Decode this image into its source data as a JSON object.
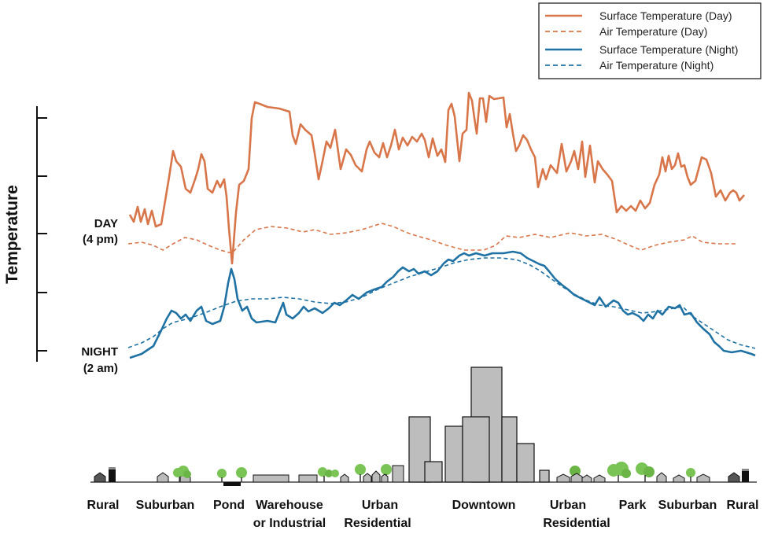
{
  "colors": {
    "day": "#D8764A",
    "night": "#1F72A3",
    "building": "#BDBDBD",
    "tree": "#79C454"
  },
  "axis": {
    "title": "Temperature",
    "day_label_1": "DAY",
    "day_label_2": "(4 pm)",
    "night_label_1": "NIGHT",
    "night_label_2": "(2 am)"
  },
  "legend": [
    {
      "label": "Surface Temperature (Day)",
      "series": "day",
      "style": "solid"
    },
    {
      "label": "Air Temperature  (Day)",
      "series": "day",
      "style": "dashed"
    },
    {
      "label": "Surface Temperature (Night)",
      "series": "night",
      "style": "solid"
    },
    {
      "label": "Air Temperature (Night)",
      "series": "night",
      "style": "dashed"
    }
  ],
  "zones": [
    {
      "lines": [
        "Rural"
      ]
    },
    {
      "lines": [
        "Suburban"
      ]
    },
    {
      "lines": [
        "Pond"
      ]
    },
    {
      "lines": [
        "Warehouse",
        "or Industrial"
      ]
    },
    {
      "lines": [
        "Urban",
        "Residential"
      ]
    },
    {
      "lines": [
        "Downtown"
      ]
    },
    {
      "lines": [
        "Urban",
        "Residential"
      ]
    },
    {
      "lines": [
        "Park"
      ]
    },
    {
      "lines": [
        "Suburban"
      ]
    },
    {
      "lines": [
        "Rural"
      ]
    }
  ]
}
